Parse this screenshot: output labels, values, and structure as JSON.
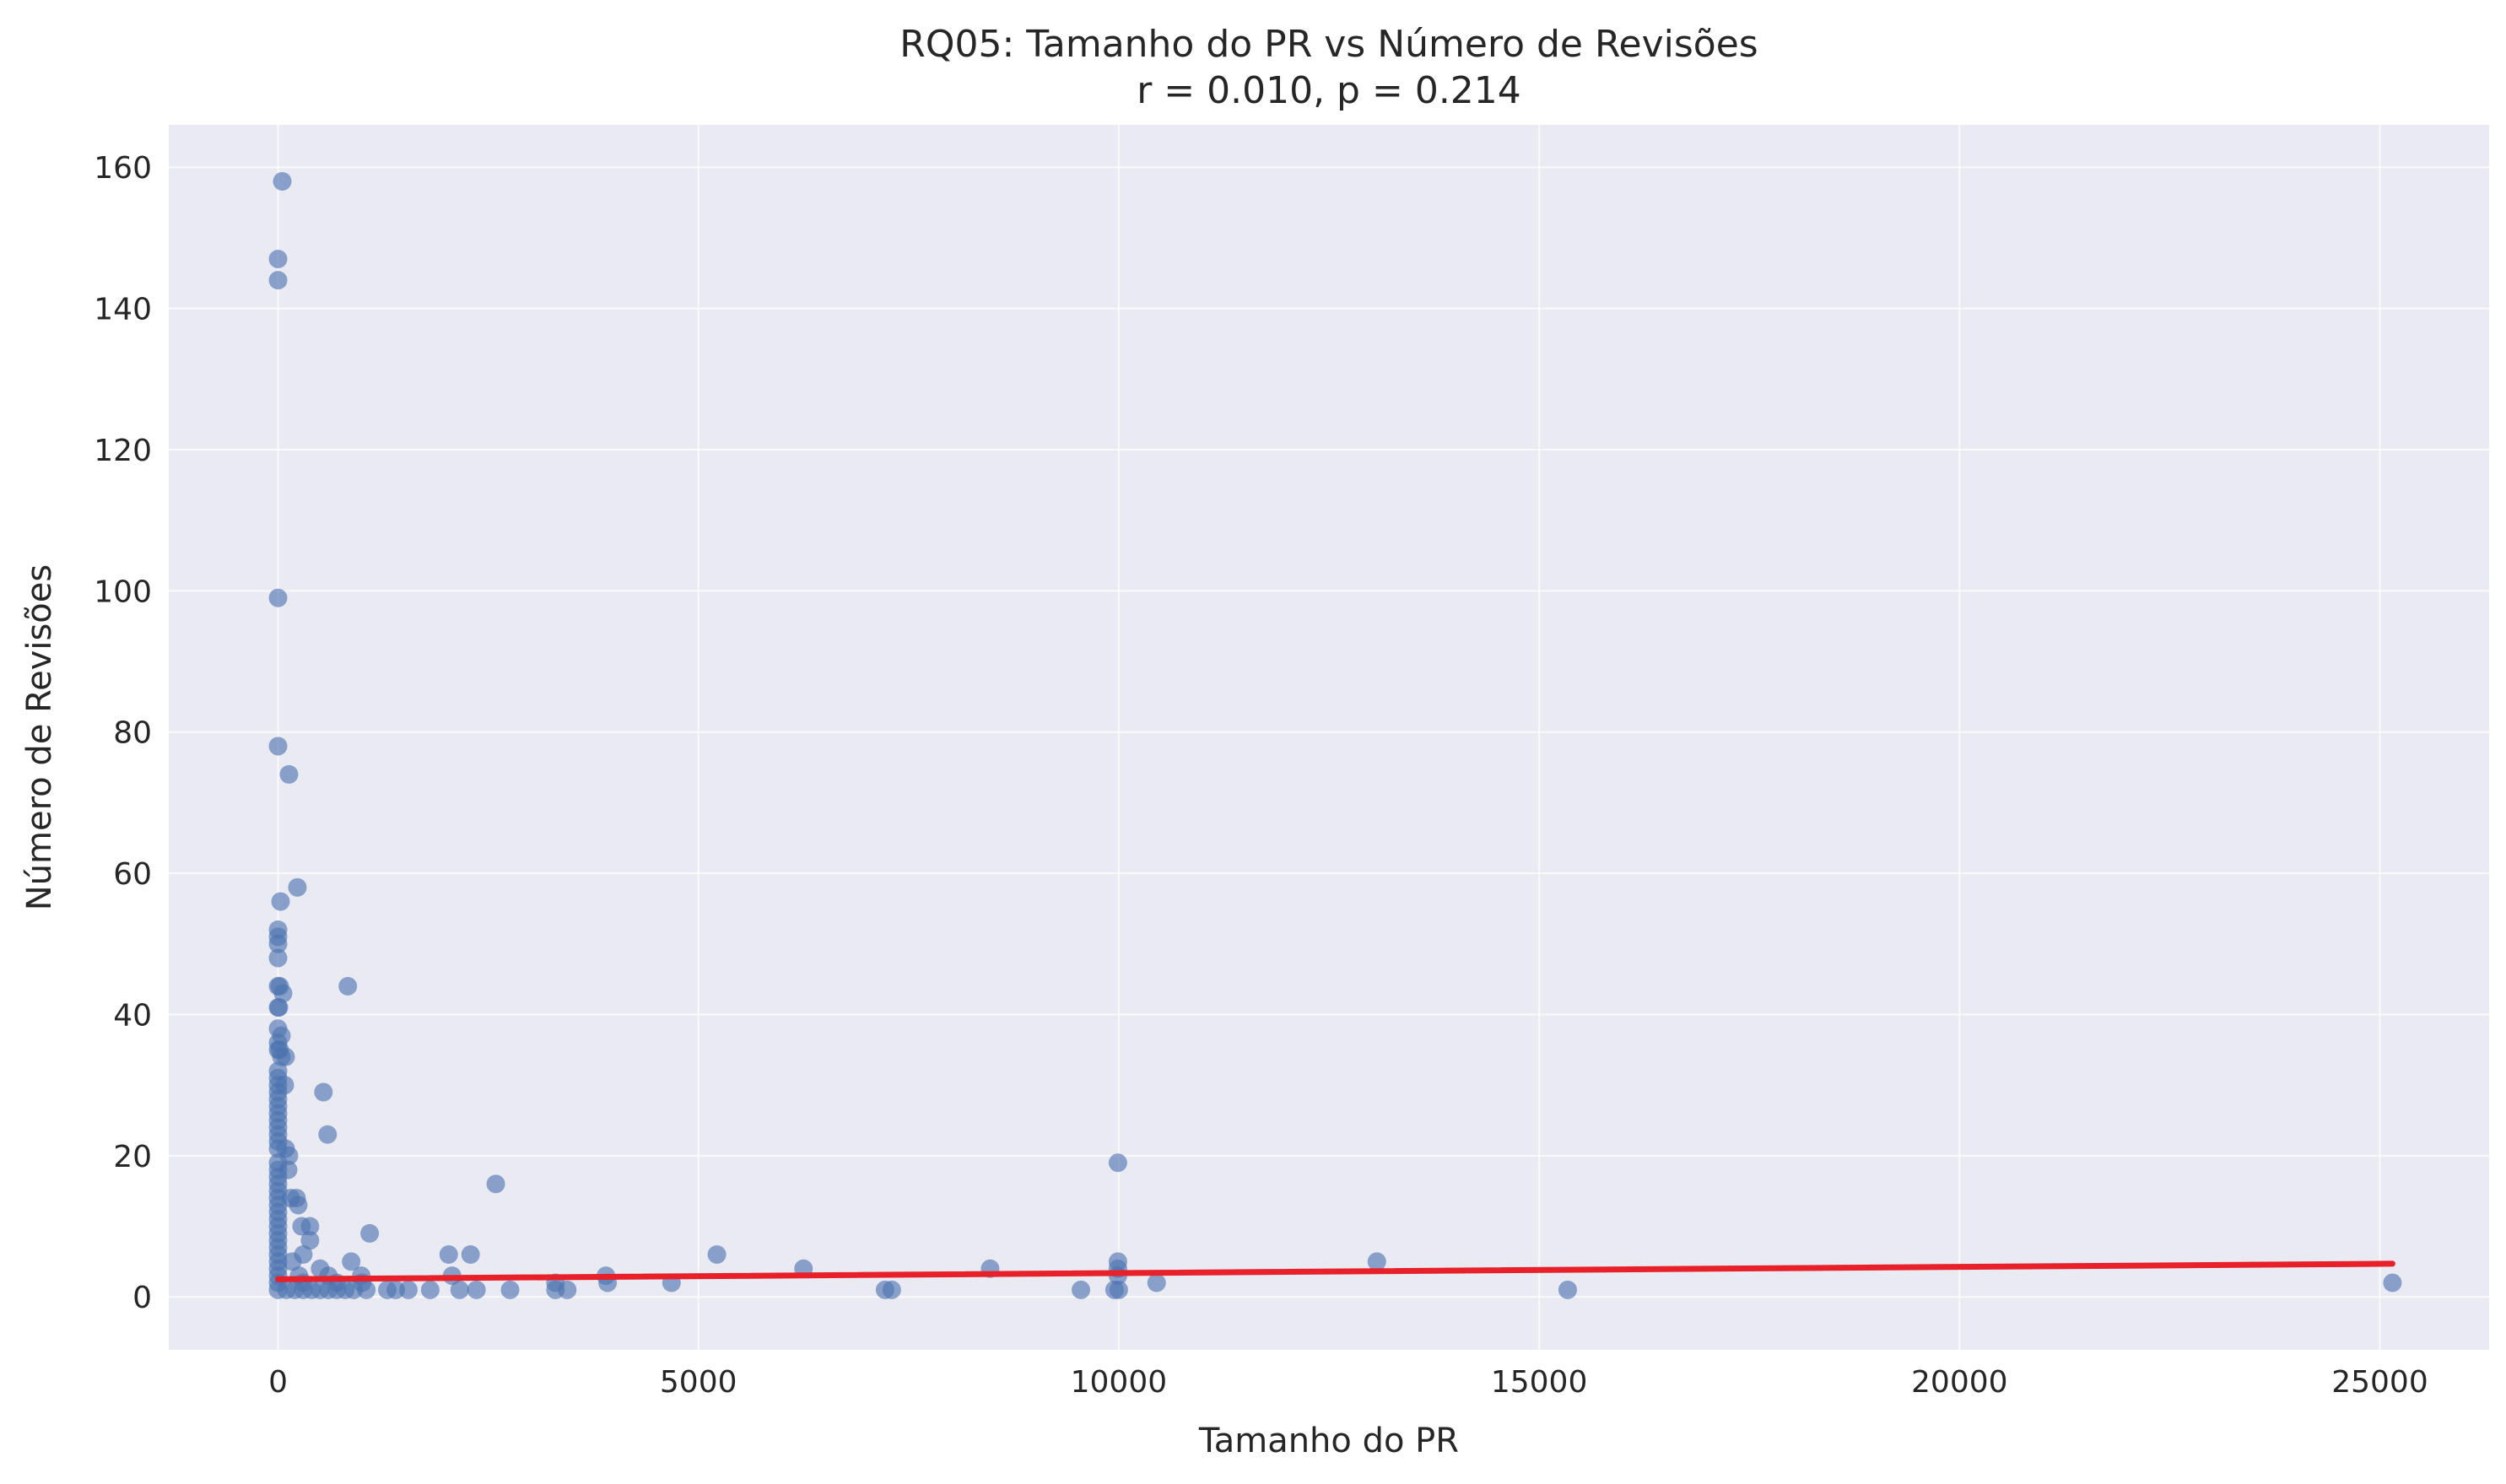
{
  "chart_data": {
    "type": "scatter",
    "title": "RQ05: Tamanho do PR vs Número de Revisões",
    "subtitle": "r = 0.010, p = 0.214",
    "xlabel": "Tamanho do PR",
    "ylabel": "Número de Revisões",
    "xlim": [
      -1300,
      26300
    ],
    "ylim": [
      -7.5,
      166
    ],
    "xticks": [
      0,
      5000,
      10000,
      15000,
      20000,
      25000
    ],
    "xtick_labels": [
      "0",
      "5000",
      "10000",
      "15000",
      "20000",
      "25000"
    ],
    "yticks": [
      0,
      20,
      40,
      60,
      80,
      100,
      120,
      140,
      160
    ],
    "ytick_labels": [
      "0",
      "20",
      "40",
      "60",
      "80",
      "100",
      "120",
      "140",
      "160"
    ],
    "grid": true,
    "colors": {
      "background": "#eaeaf2",
      "grid": "#ffffff",
      "points": "#4c72b0",
      "trendline": "#e8202a",
      "text": "#262626"
    },
    "series": [
      {
        "points": [
          [
            50,
            158
          ],
          [
            0,
            147
          ],
          [
            0,
            144
          ],
          [
            0,
            99
          ],
          [
            0,
            78
          ],
          [
            130,
            74
          ],
          [
            230,
            58
          ],
          [
            30,
            56
          ],
          [
            0,
            52
          ],
          [
            0,
            51
          ],
          [
            0,
            50
          ],
          [
            0,
            48
          ],
          [
            0,
            44
          ],
          [
            20,
            44
          ],
          [
            60,
            43
          ],
          [
            830,
            44
          ],
          [
            0,
            41
          ],
          [
            10,
            41
          ],
          [
            0,
            38
          ],
          [
            40,
            37
          ],
          [
            0,
            36
          ],
          [
            20,
            35
          ],
          [
            0,
            35
          ],
          [
            40,
            34
          ],
          [
            90,
            34
          ],
          [
            0,
            32
          ],
          [
            0,
            31
          ],
          [
            0,
            30
          ],
          [
            80,
            30
          ],
          [
            0,
            29
          ],
          [
            540,
            29
          ],
          [
            0,
            28
          ],
          [
            0,
            27
          ],
          [
            0,
            26
          ],
          [
            0,
            25
          ],
          [
            0,
            24
          ],
          [
            0,
            23
          ],
          [
            590,
            23
          ],
          [
            0,
            22
          ],
          [
            0,
            21
          ],
          [
            90,
            21
          ],
          [
            130,
            20
          ],
          [
            0,
            19
          ],
          [
            9990,
            19
          ],
          [
            0,
            18
          ],
          [
            120,
            18
          ],
          [
            0,
            17
          ],
          [
            0,
            16
          ],
          [
            2590,
            16
          ],
          [
            0,
            15
          ],
          [
            0,
            14
          ],
          [
            150,
            14
          ],
          [
            220,
            14
          ],
          [
            0,
            13
          ],
          [
            240,
            13
          ],
          [
            0,
            12
          ],
          [
            0,
            11
          ],
          [
            0,
            10
          ],
          [
            280,
            10
          ],
          [
            380,
            10
          ],
          [
            0,
            9
          ],
          [
            1090,
            9
          ],
          [
            0,
            8
          ],
          [
            380,
            8
          ],
          [
            0,
            7
          ],
          [
            0,
            6
          ],
          [
            300,
            6
          ],
          [
            2030,
            6
          ],
          [
            2290,
            6
          ],
          [
            5220,
            6
          ],
          [
            0,
            5
          ],
          [
            170,
            5
          ],
          [
            870,
            5
          ],
          [
            9990,
            5
          ],
          [
            13070,
            5
          ],
          [
            0,
            4
          ],
          [
            500,
            4
          ],
          [
            6250,
            4
          ],
          [
            8470,
            4
          ],
          [
            9990,
            4
          ],
          [
            0,
            3
          ],
          [
            250,
            3
          ],
          [
            600,
            3
          ],
          [
            990,
            3
          ],
          [
            2070,
            3
          ],
          [
            3900,
            3
          ],
          [
            9990,
            3
          ],
          [
            0,
            2
          ],
          [
            300,
            2
          ],
          [
            700,
            2
          ],
          [
            1000,
            2
          ],
          [
            3300,
            2
          ],
          [
            3920,
            2
          ],
          [
            4680,
            2
          ],
          [
            10450,
            2
          ],
          [
            25150,
            2
          ],
          [
            0,
            1
          ],
          [
            100,
            1
          ],
          [
            200,
            1
          ],
          [
            300,
            1
          ],
          [
            400,
            1
          ],
          [
            500,
            1
          ],
          [
            600,
            1
          ],
          [
            700,
            1
          ],
          [
            800,
            1
          ],
          [
            900,
            1
          ],
          [
            1050,
            1
          ],
          [
            1300,
            1
          ],
          [
            1400,
            1
          ],
          [
            1550,
            1
          ],
          [
            1810,
            1
          ],
          [
            2160,
            1
          ],
          [
            2360,
            1
          ],
          [
            2760,
            1
          ],
          [
            3300,
            1
          ],
          [
            3440,
            1
          ],
          [
            7220,
            1
          ],
          [
            7300,
            1
          ],
          [
            9550,
            1
          ],
          [
            9950,
            1
          ],
          [
            10000,
            1
          ],
          [
            15340,
            1
          ]
        ]
      }
    ],
    "trendline": {
      "x": [
        0,
        25150
      ],
      "y": [
        2.5,
        4.7
      ]
    }
  }
}
